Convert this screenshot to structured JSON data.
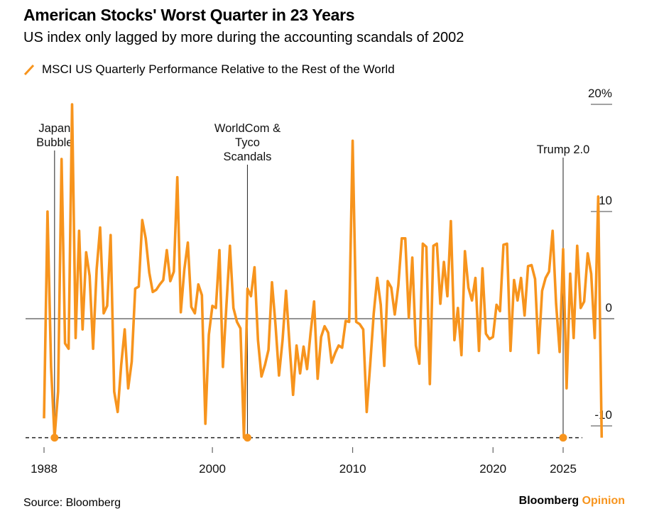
{
  "header": {
    "title": "American Stocks' Worst Quarter in 23 Years",
    "subtitle": "US index only lagged by more during the accounting scandals of 2002"
  },
  "legend": {
    "label": "MSCI US Quarterly Performance Relative to the Rest of the World"
  },
  "footer": {
    "source": "Source: Bloomberg",
    "brand_main": "Bloomberg",
    "brand_accent": "Opinion"
  },
  "colors": {
    "series": "#f7941d",
    "axis": "#555555",
    "grid": "#444444"
  },
  "chart_data": {
    "type": "line",
    "title": "American Stocks' Worst Quarter in 23 Years",
    "subtitle": "US index only lagged by more during the accounting scandals of 2002",
    "xlabel": "",
    "ylabel": "",
    "x_range": [
      1988,
      2025.25
    ],
    "ylim": [
      -11.2,
      20
    ],
    "y_ticks": [
      {
        "value": 20,
        "label": "20%"
      },
      {
        "value": 10,
        "label": "10"
      },
      {
        "value": 0,
        "label": "0"
      },
      {
        "value": -10,
        "label": "-10"
      }
    ],
    "x_ticks": [
      {
        "value": 1988,
        "label": "1988"
      },
      {
        "value": 2000,
        "label": "2000"
      },
      {
        "value": 2010,
        "label": "2010"
      },
      {
        "value": 2020,
        "label": "2020"
      },
      {
        "value": 2025,
        "label": "2025"
      }
    ],
    "grid": false,
    "legend_position": "top-left",
    "baseline": 0,
    "floor_line": -11.1,
    "series": [
      {
        "name": "MSCI US Quarterly Performance Relative to the Rest of the World",
        "color": "#f7941d",
        "start": 1988.0,
        "step": 0.25,
        "values": [
          -9.3,
          10.0,
          -4.5,
          -11.1,
          -6.8,
          14.9,
          -2.3,
          -2.8,
          20.0,
          -1.8,
          8.2,
          -1.0,
          6.2,
          4.0,
          -2.8,
          4.6,
          8.5,
          0.5,
          1.2,
          7.8,
          -6.8,
          -8.7,
          -4.3,
          -1.0,
          -6.5,
          -4.0,
          2.8,
          3.0,
          9.2,
          7.5,
          4.3,
          2.5,
          2.7,
          3.2,
          3.6,
          6.4,
          3.5,
          4.4,
          13.2,
          0.6,
          4.6,
          7.1,
          1.1,
          0.5,
          3.2,
          2.2,
          -9.8,
          -1.5,
          1.2,
          1.0,
          6.4,
          -4.5,
          1.2,
          6.8,
          1.0,
          -0.3,
          -0.9,
          -11.1,
          2.8,
          2.1,
          4.8,
          -2.0,
          -5.4,
          -4.3,
          -2.9,
          3.4,
          -0.6,
          -5.3,
          -2.0,
          2.6,
          -2.4,
          -7.1,
          -2.5,
          -5.1,
          -2.6,
          -4.7,
          -1.3,
          1.6,
          -5.6,
          -1.7,
          -0.7,
          -1.3,
          -4.1,
          -3.2,
          -2.5,
          -2.7,
          -0.2,
          -0.3,
          16.6,
          -0.3,
          -0.5,
          -1.0,
          -8.7,
          -4.3,
          0.5,
          3.8,
          1.3,
          -4.4,
          3.5,
          2.9,
          0.4,
          3.1,
          7.5,
          7.5,
          0.1,
          5.7,
          -2.5,
          -4.2,
          7.0,
          6.7,
          -6.1,
          6.8,
          7.0,
          1.4,
          5.3,
          2.1,
          9.1,
          -2.0,
          1.0,
          -3.4,
          6.3,
          2.9,
          1.7,
          3.8,
          -3.0,
          4.7,
          -1.4,
          -1.9,
          -1.7,
          1.3,
          0.7,
          6.9,
          7.0,
          -3.0,
          3.6,
          1.7,
          3.8,
          0.3,
          4.9,
          5.0,
          3.7,
          -3.2,
          2.6,
          3.8,
          4.4,
          8.2,
          1.4,
          -3.1,
          6.5,
          -6.5,
          4.2,
          -1.8,
          6.8,
          1.0,
          1.6,
          6.1,
          4.2,
          -1.8,
          11.4,
          -11.1
        ]
      }
    ],
    "annotations": [
      {
        "x": 1988.75,
        "lines": [
          "Japan",
          "Bubble"
        ]
      },
      {
        "x": 2002.5,
        "lines": [
          "WorldCom &",
          "Tyco",
          "Scandals"
        ]
      },
      {
        "x": 2025.0,
        "lines": [
          "Trump 2.0"
        ]
      }
    ],
    "markers": [
      {
        "x": 1988.75,
        "y": -11.1
      },
      {
        "x": 2002.5,
        "y": -11.1
      },
      {
        "x": 2025.0,
        "y": -11.1
      }
    ]
  }
}
